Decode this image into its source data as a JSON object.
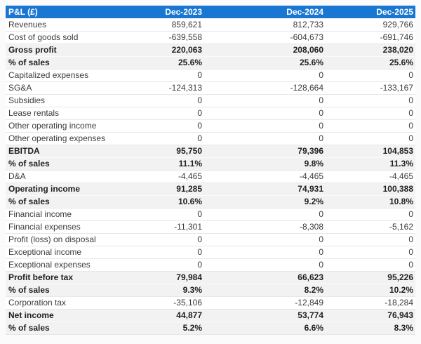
{
  "colors": {
    "header_bg": "#1976d2",
    "header_text": "#ffffff",
    "band_bg": "#f2f2f2",
    "row_border": "#e7e7e7",
    "body_text": "#3c3c3c"
  },
  "chart_data": {
    "type": "table",
    "title": "P&L (£)",
    "columns": [
      "Dec-2023",
      "Dec-2024",
      "Dec-2025"
    ],
    "rows": [
      {
        "label": "Revenues",
        "values": [
          "859,621",
          "812,733",
          "929,766"
        ],
        "emphasis": false
      },
      {
        "label": "Cost of goods sold",
        "values": [
          "-639,558",
          "-604,673",
          "-691,746"
        ],
        "emphasis": false
      },
      {
        "label": "Gross profit",
        "values": [
          "220,063",
          "208,060",
          "238,020"
        ],
        "emphasis": true
      },
      {
        "label": "% of sales",
        "values": [
          "25.6%",
          "25.6%",
          "25.6%"
        ],
        "emphasis": true
      },
      {
        "label": "Capitalized expenses",
        "values": [
          "0",
          "0",
          "0"
        ],
        "emphasis": false
      },
      {
        "label": "SG&A",
        "values": [
          "-124,313",
          "-128,664",
          "-133,167"
        ],
        "emphasis": false
      },
      {
        "label": "Subsidies",
        "values": [
          "0",
          "0",
          "0"
        ],
        "emphasis": false
      },
      {
        "label": "Lease rentals",
        "values": [
          "0",
          "0",
          "0"
        ],
        "emphasis": false
      },
      {
        "label": "Other operating income",
        "values": [
          "0",
          "0",
          "0"
        ],
        "emphasis": false
      },
      {
        "label": "Other operating expenses",
        "values": [
          "0",
          "0",
          "0"
        ],
        "emphasis": false
      },
      {
        "label": "EBITDA",
        "values": [
          "95,750",
          "79,396",
          "104,853"
        ],
        "emphasis": true
      },
      {
        "label": "% of sales",
        "values": [
          "11.1%",
          "9.8%",
          "11.3%"
        ],
        "emphasis": true
      },
      {
        "label": "D&A",
        "values": [
          "-4,465",
          "-4,465",
          "-4,465"
        ],
        "emphasis": false
      },
      {
        "label": "Operating income",
        "values": [
          "91,285",
          "74,931",
          "100,388"
        ],
        "emphasis": true
      },
      {
        "label": "% of sales",
        "values": [
          "10.6%",
          "9.2%",
          "10.8%"
        ],
        "emphasis": true
      },
      {
        "label": "Financial income",
        "values": [
          "0",
          "0",
          "0"
        ],
        "emphasis": false
      },
      {
        "label": "Financial expenses",
        "values": [
          "-11,301",
          "-8,308",
          "-5,162"
        ],
        "emphasis": false
      },
      {
        "label": "Profit (loss) on disposal",
        "values": [
          "0",
          "0",
          "0"
        ],
        "emphasis": false
      },
      {
        "label": "Exceptional income",
        "values": [
          "0",
          "0",
          "0"
        ],
        "emphasis": false
      },
      {
        "label": "Exceptional expenses",
        "values": [
          "0",
          "0",
          "0"
        ],
        "emphasis": false
      },
      {
        "label": "Profit before tax",
        "values": [
          "79,984",
          "66,623",
          "95,226"
        ],
        "emphasis": true
      },
      {
        "label": "% of sales",
        "values": [
          "9.3%",
          "8.2%",
          "10.2%"
        ],
        "emphasis": true
      },
      {
        "label": "Corporation tax",
        "values": [
          "-35,106",
          "-12,849",
          "-18,284"
        ],
        "emphasis": false
      },
      {
        "label": "Net income",
        "values": [
          "44,877",
          "53,774",
          "76,943"
        ],
        "emphasis": true
      },
      {
        "label": "% of sales",
        "values": [
          "5.2%",
          "6.6%",
          "8.3%"
        ],
        "emphasis": true
      }
    ]
  }
}
